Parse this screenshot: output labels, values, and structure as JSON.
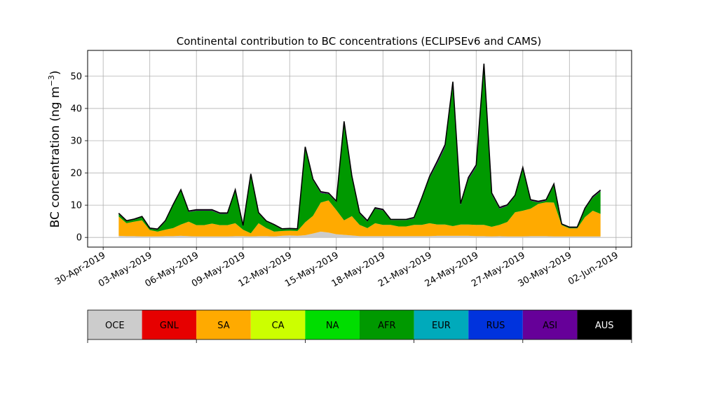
{
  "chart_data": {
    "type": "area",
    "title": "Continental contribution to BC concentrations (ECLIPSEv6 and CAMS)",
    "ylabel": "BC concentration (ng m⁻³)",
    "ylabel_main": "BC concentration (ng m",
    "ylabel_sup": "−3",
    "ylabel_close": ")",
    "xlabel": "",
    "xlim": [
      "2019-04-29",
      "2019-06-03"
    ],
    "ylim": [
      -3,
      58
    ],
    "yticks": [
      0,
      10,
      20,
      30,
      40,
      50
    ],
    "xticks": [
      "2019-04-30",
      "2019-05-03",
      "2019-05-06",
      "2019-05-09",
      "2019-05-12",
      "2019-05-15",
      "2019-05-18",
      "2019-05-21",
      "2019-05-24",
      "2019-05-27",
      "2019-05-30",
      "2019-06-02"
    ],
    "xtick_labels": [
      "30-Apr-2019",
      "03-May-2019",
      "06-May-2019",
      "09-May-2019",
      "12-May-2019",
      "15-May-2019",
      "18-May-2019",
      "21-May-2019",
      "24-May-2019",
      "27-May-2019",
      "30-May-2019",
      "02-Jun-2019"
    ],
    "grid": true,
    "stacked": true,
    "legend_position": "bottom",
    "legend_tick_positions": [
      0,
      2,
      4,
      6,
      8,
      10
    ],
    "x": [
      "2019-05-01T00:00",
      "2019-05-01T12:00",
      "2019-05-02T00:00",
      "2019-05-02T12:00",
      "2019-05-03T00:00",
      "2019-05-03T12:00",
      "2019-05-04T00:00",
      "2019-05-04T12:00",
      "2019-05-05T00:00",
      "2019-05-05T12:00",
      "2019-05-06T00:00",
      "2019-05-06T12:00",
      "2019-05-07T00:00",
      "2019-05-07T12:00",
      "2019-05-08T00:00",
      "2019-05-08T12:00",
      "2019-05-09T00:00",
      "2019-05-09T12:00",
      "2019-05-10T00:00",
      "2019-05-10T12:00",
      "2019-05-11T00:00",
      "2019-05-11T12:00",
      "2019-05-12T00:00",
      "2019-05-12T12:00",
      "2019-05-13T00:00",
      "2019-05-13T12:00",
      "2019-05-14T00:00",
      "2019-05-14T12:00",
      "2019-05-15T00:00",
      "2019-05-15T12:00",
      "2019-05-16T00:00",
      "2019-05-16T12:00",
      "2019-05-17T00:00",
      "2019-05-17T12:00",
      "2019-05-18T00:00",
      "2019-05-18T12:00",
      "2019-05-19T00:00",
      "2019-05-19T12:00",
      "2019-05-20T00:00",
      "2019-05-20T12:00",
      "2019-05-21T00:00",
      "2019-05-21T12:00",
      "2019-05-22T00:00",
      "2019-05-22T12:00",
      "2019-05-23T00:00",
      "2019-05-23T12:00",
      "2019-05-24T00:00",
      "2019-05-24T12:00",
      "2019-05-25T00:00",
      "2019-05-25T12:00",
      "2019-05-26T00:00",
      "2019-05-26T12:00",
      "2019-05-27T00:00",
      "2019-05-27T12:00",
      "2019-05-28T00:00",
      "2019-05-28T12:00",
      "2019-05-29T00:00",
      "2019-05-29T12:00",
      "2019-05-30T00:00",
      "2019-05-30T12:00",
      "2019-05-31T00:00",
      "2019-05-31T12:00",
      "2019-06-01T00:00"
    ],
    "series": [
      {
        "name": "OCE",
        "color": "#cccccc",
        "values": [
          0.5,
          0.4,
          0.4,
          0.3,
          0.3,
          0.3,
          0.4,
          0.4,
          0.5,
          0.4,
          0.3,
          0.3,
          0.3,
          0.3,
          0.3,
          0.4,
          0.4,
          0.3,
          0.4,
          0.4,
          0.3,
          0.5,
          0.6,
          0.5,
          0.7,
          1.2,
          1.8,
          1.5,
          1.0,
          0.8,
          0.6,
          0.4,
          0.4,
          0.4,
          0.4,
          0.4,
          0.4,
          0.4,
          0.4,
          0.4,
          0.4,
          0.5,
          0.5,
          0.5,
          0.5,
          0.5,
          0.4,
          0.4,
          0.3,
          0.4,
          0.3,
          0.3,
          0.3,
          0.4,
          0.4,
          0.4,
          0.3,
          0.3,
          0.3,
          0.3,
          0.3,
          0.3,
          0.3
        ]
      },
      {
        "name": "GNL",
        "color": "#e60000",
        "values": [
          0,
          0,
          0,
          0,
          0,
          0,
          0,
          0,
          0,
          0,
          0,
          0,
          0,
          0,
          0,
          0,
          0,
          0,
          0,
          0,
          0,
          0,
          0,
          0,
          0,
          0,
          0,
          0,
          0,
          0,
          0,
          0,
          0,
          0,
          0,
          0,
          0,
          0,
          0,
          0,
          0,
          0,
          0,
          0,
          0,
          0,
          0,
          0,
          0,
          0,
          0,
          0,
          0,
          0,
          0,
          0,
          0,
          0,
          0,
          0,
          0,
          0,
          0
        ]
      },
      {
        "name": "SA",
        "color": "#ffaa00",
        "values": [
          6.0,
          4.0,
          4.5,
          5.0,
          2.0,
          1.5,
          2.0,
          2.5,
          3.5,
          4.5,
          3.5,
          3.5,
          4.0,
          3.5,
          3.5,
          4.0,
          2.0,
          1.0,
          4.0,
          2.5,
          1.5,
          1.5,
          1.5,
          1.5,
          4.0,
          5.5,
          9.0,
          10.0,
          7.5,
          4.5,
          6.0,
          3.5,
          2.5,
          4.0,
          3.5,
          3.5,
          3.0,
          3.0,
          3.5,
          3.5,
          4.0,
          3.5,
          3.5,
          3.0,
          3.5,
          3.5,
          3.5,
          3.5,
          3.0,
          3.5,
          4.5,
          7.5,
          8.0,
          8.5,
          10.0,
          10.5,
          10.5,
          3.5,
          2.5,
          2.5,
          6.0,
          8.0,
          7.0
        ]
      },
      {
        "name": "CA",
        "color": "#ccff00",
        "values": [
          0,
          0,
          0,
          0,
          0,
          0,
          0,
          0,
          0,
          0,
          0,
          0,
          0,
          0,
          0,
          0,
          0,
          0,
          0,
          0,
          0,
          0,
          0,
          0,
          0,
          0,
          0,
          0,
          0,
          0,
          0,
          0,
          0,
          0,
          0,
          0,
          0,
          0,
          0,
          0,
          0,
          0,
          0,
          0,
          0,
          0,
          0,
          0,
          0,
          0,
          0,
          0,
          0,
          0,
          0,
          0,
          0,
          0,
          0,
          0,
          0,
          0,
          0
        ]
      },
      {
        "name": "NA",
        "color": "#00dd00",
        "values": [
          0,
          0,
          0,
          0,
          0,
          0,
          0,
          0,
          0,
          0,
          0,
          0,
          0,
          0,
          0,
          0,
          0,
          0,
          0,
          0,
          0,
          0,
          0,
          0,
          0,
          0,
          0,
          0,
          0,
          0,
          0,
          0,
          0,
          0,
          0,
          0,
          0,
          0,
          0,
          0,
          0,
          0,
          0,
          0,
          0,
          0,
          0,
          0,
          0,
          0,
          0,
          0,
          0,
          0,
          0,
          0,
          0,
          0,
          0,
          0,
          0,
          0,
          0
        ]
      },
      {
        "name": "AFR",
        "color": "#009900",
        "values": [
          0.7,
          0.6,
          0.6,
          1.0,
          0.4,
          0.6,
          2.5,
          7.0,
          10.5,
          3.0,
          4.5,
          4.5,
          4.0,
          3.5,
          3.5,
          10.0,
          1.0,
          18.0,
          3.0,
          2.0,
          2.0,
          0.5,
          0.5,
          0.5,
          23.0,
          11.0,
          3.0,
          2.0,
          2.5,
          30.0,
          12.0,
          3.5,
          2.0,
          4.5,
          4.5,
          1.5,
          2.0,
          2.0,
          2.0,
          8.0,
          14.0,
          19.0,
          24.0,
          44.0,
          6.0,
          14.0,
          18.0,
          49.0,
          10.0,
          5.0,
          5.0,
          5.0,
          13.0,
          2.5,
          0.5,
          0.5,
          5.5,
          0.2,
          0.2,
          0.2,
          2.5,
          4.0,
          7.0
        ]
      },
      {
        "name": "EUR",
        "color": "#00aabb",
        "values": [
          0,
          0,
          0,
          0,
          0,
          0,
          0,
          0,
          0,
          0,
          0,
          0,
          0,
          0,
          0,
          0,
          0,
          0,
          0,
          0,
          0,
          0,
          0,
          0,
          0,
          0,
          0,
          0,
          0,
          0,
          0,
          0,
          0,
          0,
          0,
          0,
          0,
          0,
          0,
          0,
          0,
          0,
          0,
          0,
          0,
          0,
          0,
          0,
          0,
          0,
          0,
          0,
          0,
          0,
          0,
          0,
          0,
          0,
          0,
          0,
          0,
          0,
          0
        ]
      },
      {
        "name": "RUS",
        "color": "#0033dd",
        "values": [
          0,
          0,
          0,
          0,
          0,
          0,
          0,
          0,
          0,
          0,
          0,
          0,
          0,
          0,
          0,
          0,
          0,
          0,
          0,
          0,
          0,
          0,
          0,
          0,
          0,
          0,
          0,
          0,
          0,
          0,
          0,
          0,
          0,
          0,
          0,
          0,
          0,
          0,
          0,
          0,
          0,
          0,
          0,
          0,
          0,
          0,
          0,
          0,
          0,
          0,
          0,
          0,
          0,
          0,
          0,
          0,
          0,
          0,
          0,
          0,
          0,
          0,
          0
        ]
      },
      {
        "name": "ASI",
        "color": "#660099",
        "values": [
          0.3,
          0.2,
          0.2,
          0.2,
          0.2,
          0.2,
          0.3,
          0.3,
          0.3,
          0.3,
          0.3,
          0.3,
          0.3,
          0.3,
          0.3,
          0.4,
          0.3,
          0.4,
          0.3,
          0.2,
          0.2,
          0.2,
          0.2,
          0.2,
          0.4,
          0.4,
          0.4,
          0.3,
          0.3,
          0.7,
          0.5,
          0.3,
          0.3,
          0.3,
          0.3,
          0.2,
          0.2,
          0.2,
          0.3,
          0.4,
          0.5,
          0.7,
          0.8,
          0.8,
          0.5,
          0.6,
          0.6,
          1.0,
          0.5,
          0.4,
          0.3,
          0.3,
          0.4,
          0.3,
          0.3,
          0.3,
          0.3,
          0.2,
          0.2,
          0.2,
          0.3,
          0.4,
          0.4
        ]
      },
      {
        "name": "AUS",
        "color": "#000000",
        "values": [
          0,
          0,
          0,
          0,
          0,
          0,
          0,
          0,
          0,
          0,
          0,
          0,
          0,
          0,
          0,
          0,
          0,
          0,
          0,
          0,
          0,
          0,
          0,
          0,
          0,
          0,
          0,
          0,
          0,
          0,
          0,
          0,
          0,
          0,
          0,
          0,
          0,
          0,
          0,
          0,
          0,
          0,
          0,
          0,
          0,
          0,
          0,
          0,
          0,
          0,
          0,
          0,
          0,
          0,
          0,
          0,
          0,
          0,
          0,
          0,
          0,
          0,
          0
        ]
      }
    ],
    "legend_text_colors": [
      "#000000",
      "#000000",
      "#000000",
      "#000000",
      "#000000",
      "#000000",
      "#000000",
      "#000000",
      "#000000",
      "#ffffff"
    ]
  }
}
